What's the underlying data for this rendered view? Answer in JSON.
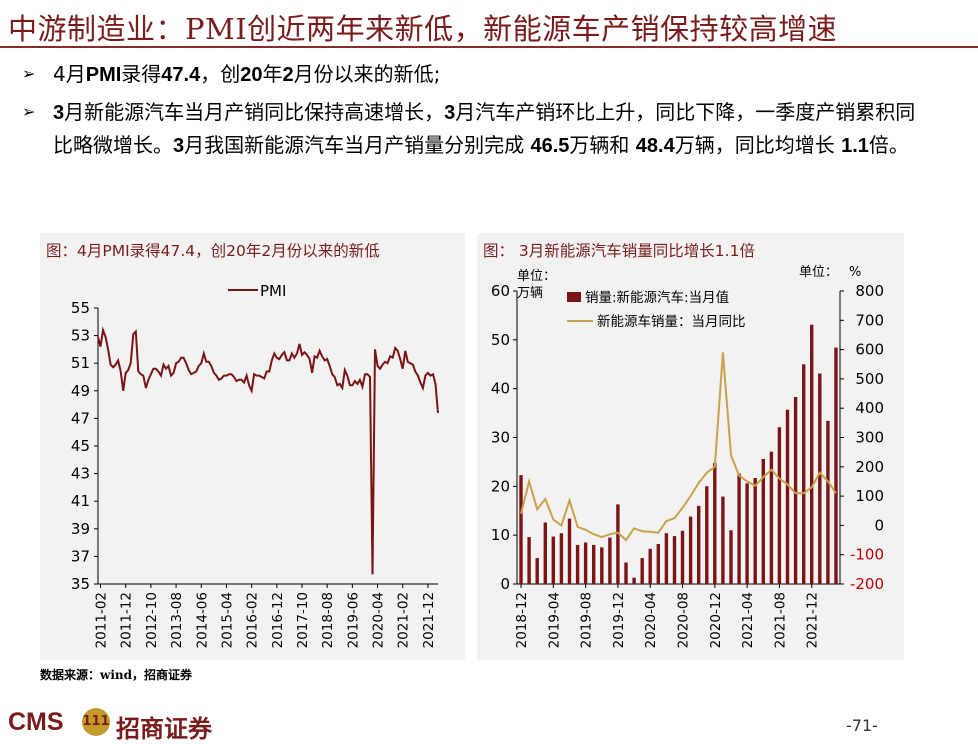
{
  "title": "中游制造业：PMI创近两年来新低，新能源车产销保持较高增速",
  "bullets": [
    {
      "marker": "➢",
      "segments": [
        {
          "t": "4月",
          "b": false
        },
        {
          "t": "PMI",
          "b": true
        },
        {
          "t": "录得",
          "b": false
        },
        {
          "t": "47.4",
          "b": true
        },
        {
          "t": "，创",
          "b": false
        },
        {
          "t": "20",
          "b": true
        },
        {
          "t": "年",
          "b": false
        },
        {
          "t": "2",
          "b": true
        },
        {
          "t": "月份以来的新低;",
          "b": false
        }
      ]
    },
    {
      "marker": "➢",
      "segments": [
        {
          "t": "3",
          "b": true
        },
        {
          "t": "月新能源汽车当月产销同比保持高速增长，",
          "b": false
        },
        {
          "t": "3",
          "b": true
        },
        {
          "t": "月汽车产销环比上升，同比下降，一季度产销累积同比略微增长。",
          "b": false
        },
        {
          "t": "3",
          "b": true
        },
        {
          "t": "月我国新能源汽车当月产销量分别完成 ",
          "b": false
        },
        {
          "t": "46.5",
          "b": true
        },
        {
          "t": "万辆和 ",
          "b": false
        },
        {
          "t": "48.4",
          "b": true
        },
        {
          "t": "万辆，同比均增长 ",
          "b": false
        },
        {
          "t": "1.1",
          "b": true
        },
        {
          "t": "倍。",
          "b": false
        }
      ]
    }
  ],
  "source": "数据来源：wind，招商证券",
  "page_number": "-71-",
  "logo": {
    "cms": "CMS",
    "badge": "111",
    "name": "招商证券"
  },
  "colors": {
    "accent": "#7a1c1c",
    "pmi_line": "#7b1414",
    "bar": "#7b1414",
    "yoy_line": "#c8a24a",
    "negative": "#c00000"
  },
  "chart_data": [
    {
      "type": "line",
      "title": "图：4月PMI录得47.4，创20年2月份以来的新低",
      "legend": [
        "PMI"
      ],
      "legend_placement": "top-center",
      "ylim": [
        35,
        55
      ],
      "yticks": [
        35,
        37,
        39,
        41,
        43,
        45,
        47,
        49,
        51,
        53,
        55
      ],
      "xticks": [
        "2011-02",
        "2011-12",
        "2012-10",
        "2013-08",
        "2014-06",
        "2015-04",
        "2016-02",
        "2016-12",
        "2017-10",
        "2018-08",
        "2019-06",
        "2020-04",
        "2021-02",
        "2021-12"
      ],
      "grid": false,
      "series": [
        {
          "name": "PMI",
          "start": "2011-01",
          "values": [
            52.9,
            52.2,
            53.4,
            52.9,
            52.0,
            50.9,
            50.7,
            50.9,
            51.2,
            50.4,
            49.0,
            50.3,
            50.5,
            51.0,
            53.1,
            53.3,
            50.4,
            50.2,
            50.1,
            49.2,
            49.8,
            50.2,
            50.6,
            50.6,
            50.4,
            50.1,
            50.9,
            50.6,
            50.8,
            50.1,
            50.3,
            51.0,
            51.1,
            51.4,
            51.4,
            51.0,
            50.5,
            50.2,
            50.3,
            50.4,
            50.8,
            51.0,
            51.7,
            51.1,
            51.1,
            50.8,
            50.3,
            50.1,
            49.8,
            49.9,
            50.1,
            50.1,
            50.2,
            50.2,
            50.0,
            49.7,
            49.8,
            49.8,
            49.6,
            50.1,
            49.4,
            49.0,
            50.2,
            50.1,
            50.1,
            50.0,
            49.9,
            50.4,
            50.4,
            51.2,
            51.7,
            51.4,
            51.3,
            51.6,
            51.8,
            51.2,
            51.2,
            51.7,
            51.4,
            51.7,
            52.4,
            51.6,
            51.8,
            51.6,
            51.3,
            50.3,
            51.5,
            51.4,
            51.9,
            51.5,
            51.2,
            51.3,
            50.8,
            50.2,
            50.0,
            49.4,
            49.5,
            49.2,
            50.5,
            50.1,
            49.4,
            49.4,
            49.7,
            49.5,
            49.8,
            49.3,
            50.2,
            50.2,
            50.0,
            35.7,
            52.0,
            50.8,
            50.6,
            50.9,
            51.1,
            51.0,
            51.5,
            51.4,
            52.1,
            51.9,
            51.3,
            50.6,
            51.9,
            51.1,
            51.0,
            50.9,
            50.4,
            50.1,
            49.6,
            49.2,
            50.1,
            50.3,
            50.1,
            50.2,
            49.5,
            47.4
          ]
        }
      ]
    },
    {
      "type": "bar",
      "title": "图：   3月新能源汽车销量同比增长1.1倍",
      "left_unit_label": "单位：",
      "left_unit": "万辆",
      "right_unit_label": "单位：",
      "right_unit": "%",
      "ylim": [
        0,
        60
      ],
      "yticks": [
        0,
        10,
        20,
        30,
        40,
        50,
        60
      ],
      "y2lim": [
        -200,
        800
      ],
      "y2ticks": [
        -200,
        -100,
        0,
        100,
        200,
        300,
        400,
        500,
        600,
        700,
        800
      ],
      "xticks": [
        "2018-12",
        "2019-04",
        "2019-08",
        "2019-12",
        "2020-04",
        "2020-08",
        "2020-12",
        "2021-04",
        "2021-08",
        "2021-12"
      ],
      "legend_placement": "top-left",
      "grid": false,
      "start": "2018-12",
      "series": [
        {
          "name": "销量:新能源汽车:当月值",
          "kind": "bar",
          "axis": "left",
          "values": [
            22.3,
            9.6,
            5.3,
            12.6,
            9.7,
            10.4,
            13.4,
            8.0,
            8.5,
            8.0,
            7.5,
            9.5,
            16.3,
            4.4,
            1.3,
            5.3,
            7.2,
            8.2,
            10.4,
            9.8,
            10.9,
            13.8,
            16.0,
            20.0,
            24.8,
            17.9,
            11.0,
            22.6,
            20.6,
            21.7,
            25.6,
            27.1,
            32.1,
            35.7,
            38.3,
            45.0,
            53.1,
            43.1,
            33.4,
            48.4
          ]
        },
        {
          "name": "新能源车销量：当月同比",
          "kind": "line",
          "axis": "right",
          "values": [
            40,
            150,
            55,
            90,
            20,
            0,
            85,
            -5,
            -15,
            -30,
            -40,
            -30,
            -25,
            -50,
            -10,
            -20,
            -22,
            -25,
            15,
            25,
            60,
            100,
            145,
            180,
            200,
            590,
            240,
            170,
            150,
            135,
            165,
            190,
            160,
            140,
            110,
            110,
            130,
            180,
            150,
            110
          ]
        }
      ]
    }
  ]
}
